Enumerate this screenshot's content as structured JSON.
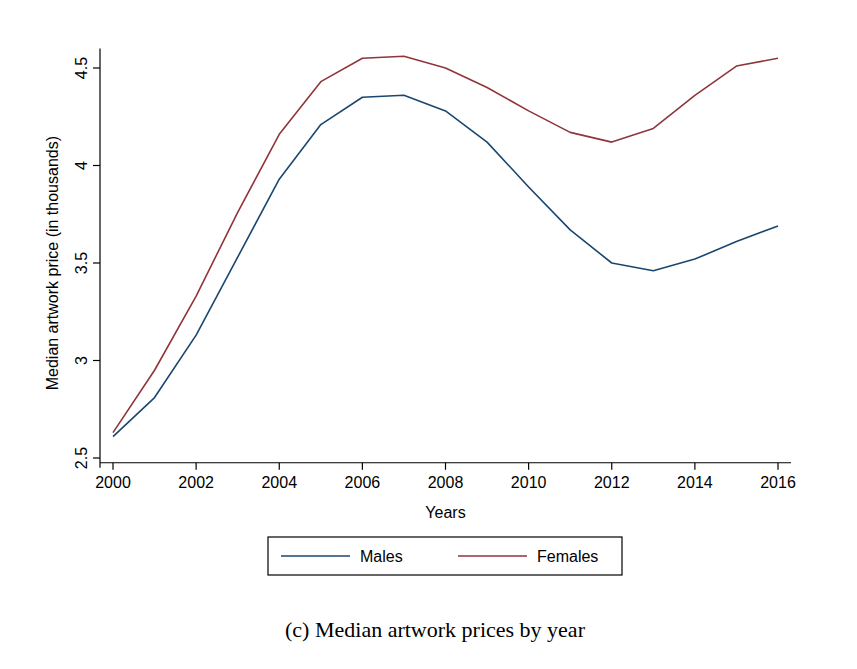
{
  "chart_data": {
    "type": "line",
    "y_label": "Median artwork price (in thousands)",
    "x_label": "Years",
    "caption": "(c) Median artwork prices by year",
    "x": [
      2000,
      2001,
      2002,
      2003,
      2004,
      2005,
      2006,
      2007,
      2008,
      2009,
      2010,
      2011,
      2012,
      2013,
      2014,
      2015,
      2016
    ],
    "series": [
      {
        "name": "Males",
        "color": "#1a476f",
        "values": [
          2.61,
          2.81,
          3.13,
          3.53,
          3.93,
          4.21,
          4.35,
          4.36,
          4.28,
          4.12,
          3.89,
          3.67,
          3.5,
          3.46,
          3.52,
          3.61,
          3.69
        ]
      },
      {
        "name": "Females",
        "color": "#90353b",
        "values": [
          2.63,
          2.95,
          3.33,
          3.76,
          4.16,
          4.43,
          4.55,
          4.56,
          4.5,
          4.4,
          4.28,
          4.17,
          4.12,
          4.19,
          4.36,
          4.51,
          4.55
        ]
      }
    ],
    "xlim": [
      2000,
      2016
    ],
    "ylim": [
      2.45,
      4.6
    ],
    "xticks": [
      2000,
      2002,
      2004,
      2006,
      2008,
      2010,
      2012,
      2014,
      2016
    ],
    "yticks": [
      2.5,
      3,
      3.5,
      4,
      4.5
    ],
    "legend": "bottom",
    "grid": false
  }
}
